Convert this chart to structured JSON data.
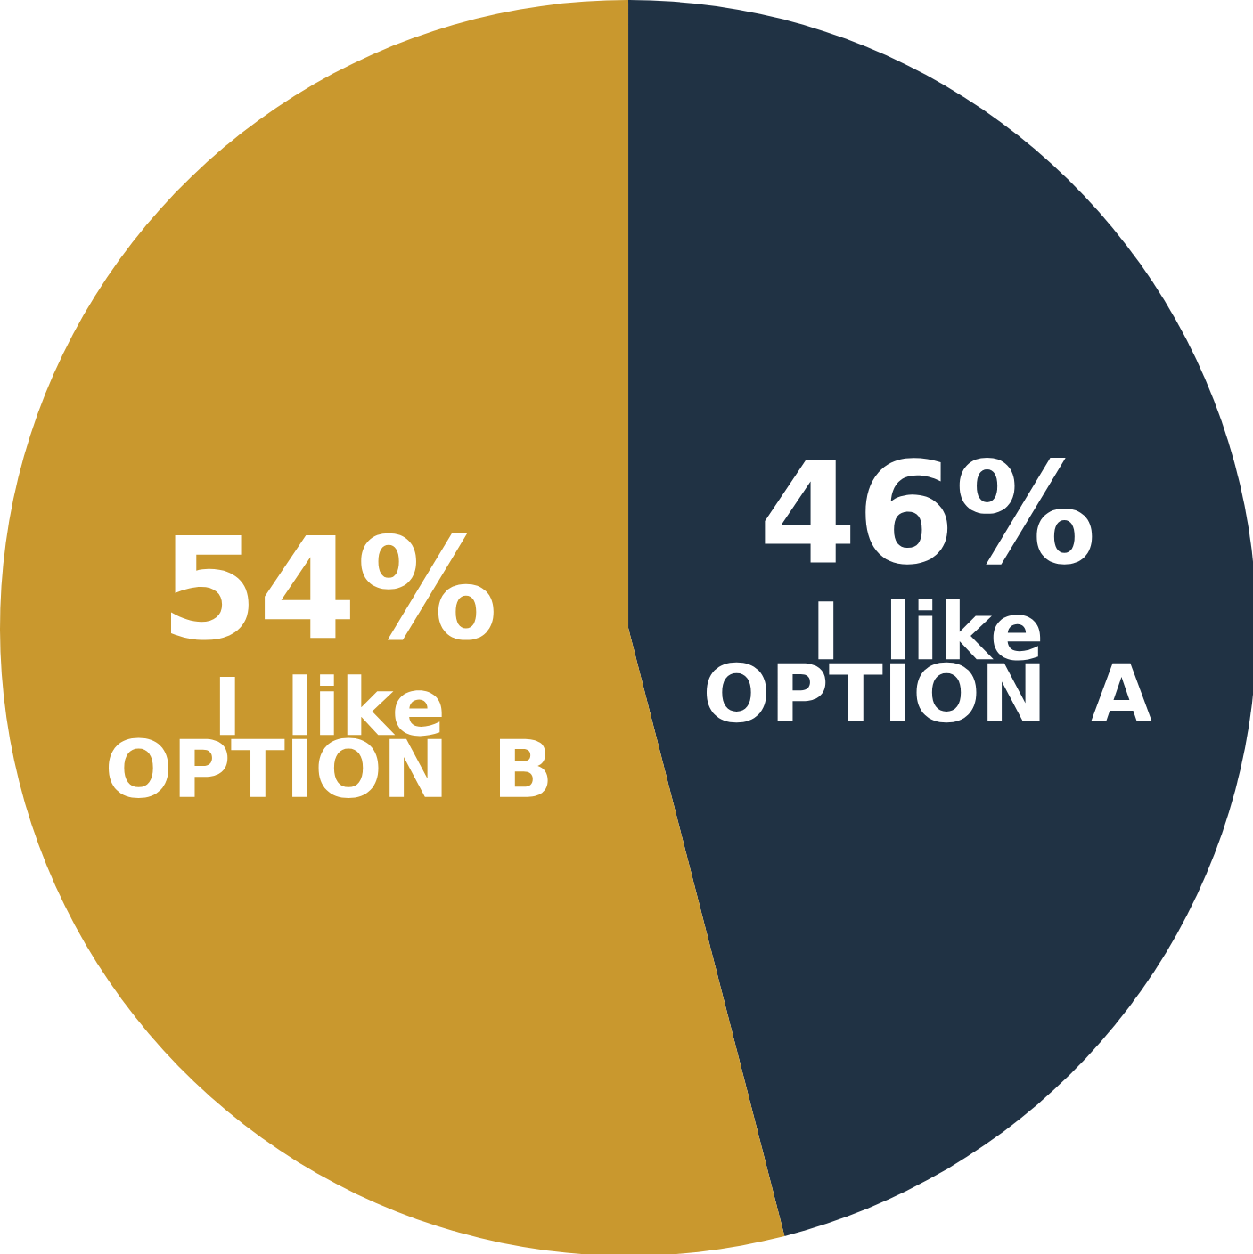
{
  "chart_data": {
    "type": "pie",
    "categories": [
      "I like OPTION A",
      "I like OPTION B"
    ],
    "values": [
      46,
      54
    ],
    "value_labels": [
      "46%",
      "54%"
    ],
    "colors": [
      "#203244",
      "#c9982e"
    ]
  }
}
